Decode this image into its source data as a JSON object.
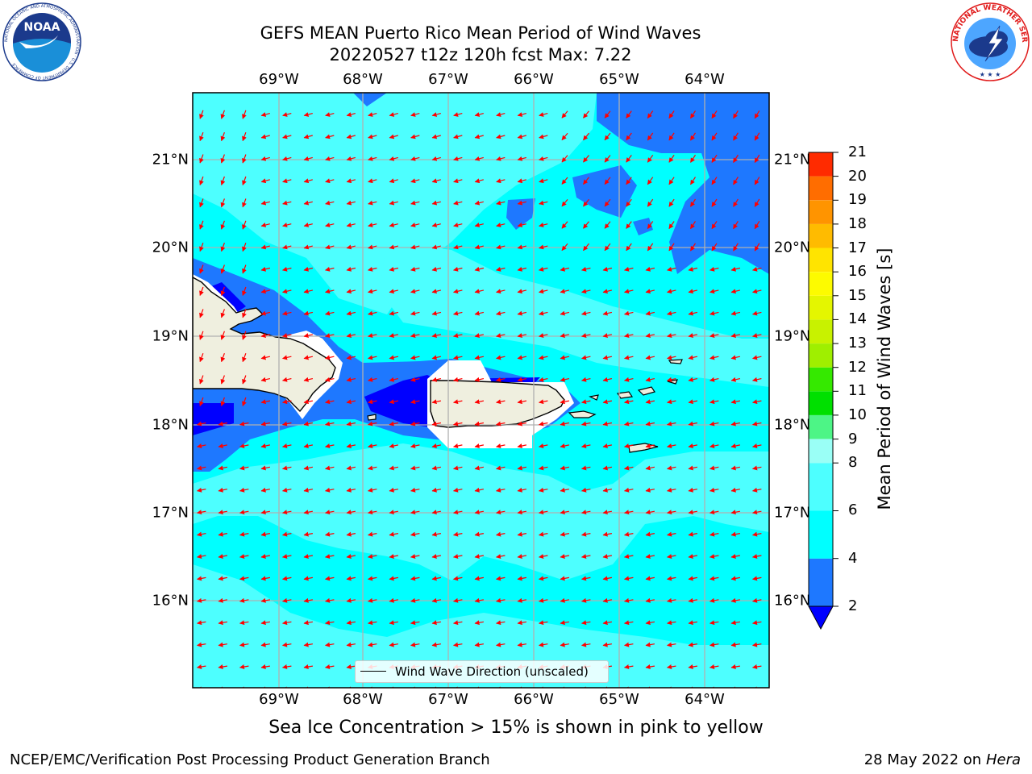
{
  "header": {
    "title_line1": "GEFS MEAN Puerto Rico Mean Period of Wind Waves",
    "title_line2": "20220527 t12z 120h fcst   Max: 7.22"
  },
  "logos": {
    "left": "NOAA",
    "left_ring_text": "NATIONAL OCEANIC AND ATMOSPHERIC ADMINISTRATION · U.S. DEPARTMENT OF COMMERCE",
    "right_ring_text": "NATIONAL WEATHER SERVICE"
  },
  "map": {
    "lon_labels": [
      "69°W",
      "68°W",
      "67°W",
      "66°W",
      "65°W",
      "64°W"
    ],
    "lat_labels": [
      "21°N",
      "20°N",
      "19°N",
      "18°N",
      "17°N",
      "16°N"
    ],
    "legend_label": "Wind Wave Direction (unscaled)",
    "colors": {
      "land": "#efefdf",
      "level_2_4": "#1e78ff",
      "level_4_6": "#00ffff",
      "level_6_8": "#4dffff",
      "below_2": "#0000ff",
      "arrow": "#ff0000"
    },
    "wave_direction": "toward west-southwest"
  },
  "colorbar": {
    "label": "Mean Period of Wind Waves [s]",
    "ticks": [
      "2",
      "4",
      "6",
      "8",
      "9",
      "10",
      "11",
      "12",
      "13",
      "14",
      "15",
      "16",
      "17",
      "18",
      "19",
      "20",
      "21"
    ],
    "colors": [
      "#1e78ff",
      "#00ffff",
      "#4dffff",
      "#9afff6",
      "#4df586",
      "#00e000",
      "#35e900",
      "#9fef00",
      "#c8f200",
      "#e4f600",
      "#fdfb00",
      "#ffe400",
      "#ffbb00",
      "#ff9400",
      "#ff6d00",
      "#ff2b00"
    ],
    "under_color": "#0000ff"
  },
  "caption": "Sea Ice Concentration > 15% is shown in pink to yellow",
  "footer": {
    "left": "NCEP/EMC/Verification Post Processing Product Generation Branch",
    "date": "28 May 2022 on",
    "host": "Hera"
  }
}
